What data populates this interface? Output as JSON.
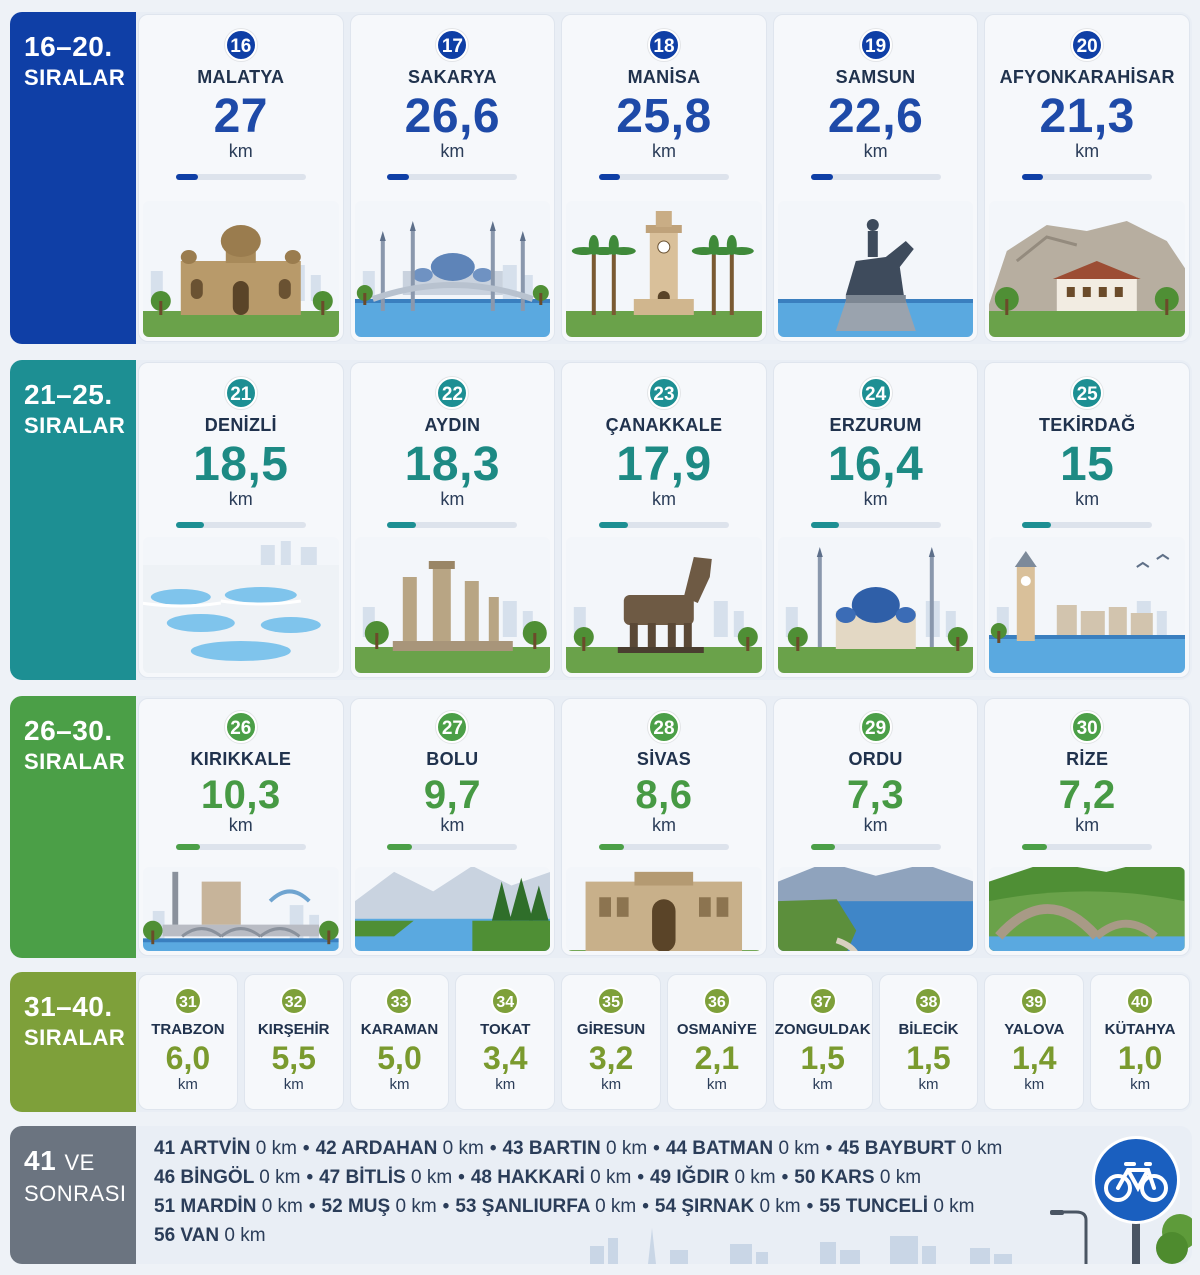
{
  "colors": {
    "blue": "#0f3fa6",
    "teal": "#1d8f93",
    "green": "#4b9f47",
    "olive": "#7ea03a",
    "gray": "#6b7480",
    "blue_value": "#1e4aa8",
    "teal_value": "#1d8a84",
    "green_value": "#479a44"
  },
  "groups": [
    {
      "label_top": "16–20.",
      "label_bottom": "SIRALAR",
      "cities": [
        {
          "rank": "16",
          "name": "MALATYA",
          "value": "27",
          "unit": "km",
          "fill": 0.17,
          "icon": "mausoleum-icon"
        },
        {
          "rank": "17",
          "name": "SAKARYA",
          "value": "26,6",
          "unit": "km",
          "fill": 0.17,
          "icon": "mosque-bridge-icon"
        },
        {
          "rank": "18",
          "name": "MANİSA",
          "value": "25,8",
          "unit": "km",
          "fill": 0.16,
          "icon": "clock-tower-icon"
        },
        {
          "rank": "19",
          "name": "SAMSUN",
          "value": "22,6",
          "unit": "km",
          "fill": 0.17,
          "icon": "equestrian-statue-icon"
        },
        {
          "rank": "20",
          "name": "AFYONKARAHİSAR",
          "value": "21,3",
          "unit": "km",
          "fill": 0.16,
          "icon": "castle-rock-icon"
        }
      ]
    },
    {
      "label_top": "21–25.",
      "label_bottom": "SIRALAR",
      "cities": [
        {
          "rank": "21",
          "name": "DENİZLİ",
          "value": "18,5",
          "unit": "km",
          "fill": 0.22,
          "icon": "travertine-icon"
        },
        {
          "rank": "22",
          "name": "AYDIN",
          "value": "18,3",
          "unit": "km",
          "fill": 0.22,
          "icon": "ancient-columns-icon"
        },
        {
          "rank": "23",
          "name": "ÇANAKKALE",
          "value": "17,9",
          "unit": "km",
          "fill": 0.22,
          "icon": "trojan-horse-icon"
        },
        {
          "rank": "24",
          "name": "ERZURUM",
          "value": "16,4",
          "unit": "km",
          "fill": 0.22,
          "icon": "mosque-icon"
        },
        {
          "rank": "25",
          "name": "TEKİRDAĞ",
          "value": "15",
          "unit": "km",
          "fill": 0.22,
          "icon": "coast-clock-tower-icon"
        }
      ]
    },
    {
      "label_top": "26–30.",
      "label_bottom": "SIRALAR",
      "cities": [
        {
          "rank": "26",
          "name": "KIRIKKALE",
          "value": "10,3",
          "unit": "km",
          "fill": 0.19,
          "icon": "bridge-river-icon"
        },
        {
          "rank": "27",
          "name": "BOLU",
          "value": "9,7",
          "unit": "km",
          "fill": 0.19,
          "icon": "lake-forest-icon"
        },
        {
          "rank": "28",
          "name": "SİVAS",
          "value": "8,6",
          "unit": "km",
          "fill": 0.19,
          "icon": "madrasa-icon"
        },
        {
          "rank": "29",
          "name": "ORDU",
          "value": "7,3",
          "unit": "km",
          "fill": 0.19,
          "icon": "coastline-icon"
        },
        {
          "rank": "30",
          "name": "RİZE",
          "value": "7,2",
          "unit": "km",
          "fill": 0.19,
          "icon": "stone-bridge-icon"
        }
      ]
    }
  ],
  "small_group": {
    "label_top": "31–40.",
    "label_bottom": "SIRALAR",
    "cities": [
      {
        "rank": "31",
        "name": "TRABZON",
        "value": "6,0",
        "unit": "km"
      },
      {
        "rank": "32",
        "name": "KIRŞEHİR",
        "value": "5,5",
        "unit": "km"
      },
      {
        "rank": "33",
        "name": "KARAMAN",
        "value": "5,0",
        "unit": "km"
      },
      {
        "rank": "34",
        "name": "TOKAT",
        "value": "3,4",
        "unit": "km"
      },
      {
        "rank": "35",
        "name": "GİRESUN",
        "value": "3,2",
        "unit": "km"
      },
      {
        "rank": "36",
        "name": "OSMANİYE",
        "value": "2,1",
        "unit": "km"
      },
      {
        "rank": "37",
        "name": "ZONGULDAK",
        "value": "1,5",
        "unit": "km"
      },
      {
        "rank": "38",
        "name": "BİLECİK",
        "value": "1,5",
        "unit": "km"
      },
      {
        "rank": "39",
        "name": "YALOVA",
        "value": "1,4",
        "unit": "km"
      },
      {
        "rank": "40",
        "name": "KÜTAHYA",
        "value": "1,0",
        "unit": "km"
      }
    ]
  },
  "rest_group": {
    "label_top": "41",
    "label_top_suffix": "VE",
    "label_bottom": "SONRASI",
    "separator": "•",
    "lines": [
      [
        {
          "rank": "41",
          "name": "ARTVİN",
          "value": "0 km"
        },
        {
          "rank": "42",
          "name": "ARDAHAN",
          "value": "0 km"
        },
        {
          "rank": "43",
          "name": "BARTIN",
          "value": "0 km"
        },
        {
          "rank": "44",
          "name": "BATMAN",
          "value": "0 km"
        },
        {
          "rank": "45",
          "name": "BAYBURT",
          "value": "0 km"
        }
      ],
      [
        {
          "rank": "46",
          "name": "BİNGÖL",
          "value": "0 km"
        },
        {
          "rank": "47",
          "name": "BİTLİS",
          "value": "0 km"
        },
        {
          "rank": "48",
          "name": "HAKKARİ",
          "value": "0 km"
        },
        {
          "rank": "49",
          "name": "IĞDIR",
          "value": "0 km"
        },
        {
          "rank": "50",
          "name": "KARS",
          "value": "0 km"
        }
      ],
      [
        {
          "rank": "51",
          "name": "MARDİN",
          "value": "0 km"
        },
        {
          "rank": "52",
          "name": "MUŞ",
          "value": "0 km"
        },
        {
          "rank": "53",
          "name": "ŞANLIURFA",
          "value": "0 km"
        },
        {
          "rank": "54",
          "name": "ŞIRNAK",
          "value": "0 km"
        },
        {
          "rank": "55",
          "name": "TUNCELİ",
          "value": "0 km"
        }
      ],
      [
        {
          "rank": "56",
          "name": "VAN",
          "value": "0 km"
        }
      ]
    ],
    "sign_icon": "bicycle-sign-icon"
  }
}
